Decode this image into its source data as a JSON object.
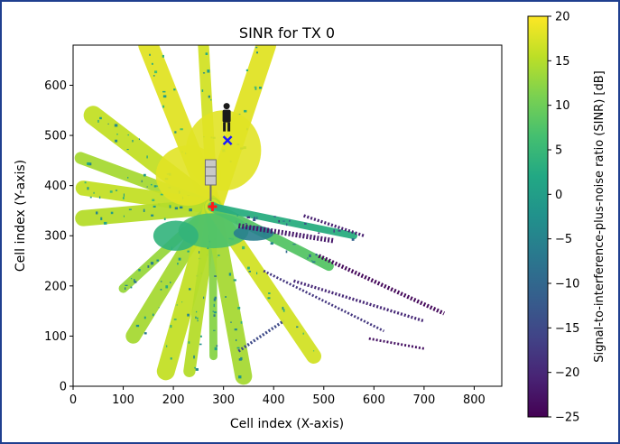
{
  "chart_data": {
    "type": "heatmap",
    "title": "SINR for TX 0",
    "xlabel": "Cell index (X-axis)",
    "ylabel": "Cell index (Y-axis)",
    "xlim": [
      0,
      855
    ],
    "ylim": [
      0,
      680
    ],
    "xticks": [
      0,
      100,
      200,
      300,
      400,
      500,
      600,
      700,
      800
    ],
    "yticks": [
      0,
      100,
      200,
      300,
      400,
      500,
      600
    ],
    "colorbar": {
      "label": "Signal-to-interference-plus-noise ratio (SINR) [dB]",
      "range": [
        -25,
        20
      ],
      "ticks": [
        20,
        15,
        10,
        5,
        0,
        -5,
        -10,
        -15,
        -20,
        -25
      ],
      "colormap": "viridis"
    },
    "grid": false,
    "markers": {
      "transmitter": {
        "x": 278,
        "y": 358,
        "color": "#ff1a1a",
        "icon": "cell-tower-icon"
      },
      "receiver": {
        "x": 308,
        "y": 490,
        "color": "#1a1aff",
        "icon": "person-icon"
      }
    },
    "coverage_beams": [
      {
        "to": [
          150,
          680
        ],
        "width": 40,
        "sinr": 18
      },
      {
        "to": [
          260,
          680
        ],
        "width": 22,
        "sinr": 17
      },
      {
        "to": [
          385,
          680
        ],
        "width": 40,
        "sinr": 18
      },
      {
        "to": [
          40,
          540
        ],
        "width": 38,
        "sinr": 16
      },
      {
        "to": [
          15,
          455
        ],
        "width": 24,
        "sinr": 14
      },
      {
        "to": [
          20,
          395
        ],
        "width": 30,
        "sinr": 16
      },
      {
        "to": [
          20,
          335
        ],
        "width": 32,
        "sinr": 15
      },
      {
        "to": [
          100,
          195
        ],
        "width": 18,
        "sinr": 13
      },
      {
        "to": [
          120,
          100
        ],
        "width": 30,
        "sinr": 14
      },
      {
        "to": [
          185,
          30
        ],
        "width": 36,
        "sinr": 16
      },
      {
        "to": [
          232,
          30
        ],
        "width": 24,
        "sinr": 15
      },
      {
        "to": [
          280,
          60
        ],
        "width": 16,
        "sinr": 12
      },
      {
        "to": [
          340,
          20
        ],
        "width": 34,
        "sinr": 14
      },
      {
        "to": [
          480,
          60
        ],
        "width": 30,
        "sinr": 17
      },
      {
        "to": [
          510,
          240
        ],
        "width": 20,
        "sinr": 8
      },
      {
        "to": [
          560,
          300
        ],
        "width": 14,
        "sinr": 3
      }
    ],
    "coverage_patches": [
      {
        "x": 300,
        "y": 470,
        "w": 150,
        "h": 160,
        "sinr": 18
      },
      {
        "x": 230,
        "y": 420,
        "w": 130,
        "h": 120,
        "sinr": 18
      },
      {
        "x": 280,
        "y": 310,
        "w": 140,
        "h": 70,
        "sinr": 7
      },
      {
        "x": 205,
        "y": 300,
        "w": 90,
        "h": 60,
        "sinr": 4
      },
      {
        "x": 360,
        "y": 305,
        "w": 80,
        "h": 30,
        "sinr": -6
      }
    ],
    "low_sinr_streaks": [
      {
        "from": [
          330,
          320
        ],
        "to": [
          520,
          290
        ],
        "width": 10,
        "sinr": -22
      },
      {
        "from": [
          490,
          260
        ],
        "to": [
          740,
          145
        ],
        "width": 8,
        "sinr": -24
      },
      {
        "from": [
          440,
          210
        ],
        "to": [
          700,
          130
        ],
        "width": 6,
        "sinr": -20
      },
      {
        "from": [
          380,
          230
        ],
        "to": [
          620,
          110
        ],
        "width": 5,
        "sinr": -18
      },
      {
        "from": [
          460,
          340
        ],
        "to": [
          580,
          300
        ],
        "width": 6,
        "sinr": -21
      },
      {
        "from": [
          330,
          70
        ],
        "to": [
          420,
          130
        ],
        "width": 6,
        "sinr": -15
      },
      {
        "from": [
          590,
          95
        ],
        "to": [
          700,
          75
        ],
        "width": 5,
        "sinr": -23
      }
    ]
  }
}
